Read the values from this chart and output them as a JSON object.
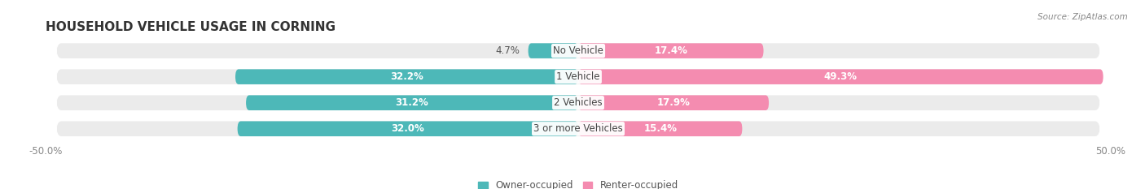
{
  "title": "HOUSEHOLD VEHICLE USAGE IN CORNING",
  "source": "Source: ZipAtlas.com",
  "categories": [
    "No Vehicle",
    "1 Vehicle",
    "2 Vehicles",
    "3 or more Vehicles"
  ],
  "owner_values": [
    4.7,
    32.2,
    31.2,
    32.0
  ],
  "renter_values": [
    17.4,
    49.3,
    17.9,
    15.4
  ],
  "owner_color": "#4db8b8",
  "renter_color": "#f48cb0",
  "bar_bg_color": "#ebebeb",
  "axis_min": -50.0,
  "axis_max": 50.0,
  "legend_labels": [
    "Owner-occupied",
    "Renter-occupied"
  ],
  "title_fontsize": 11,
  "label_fontsize": 8.5,
  "tick_fontsize": 8.5,
  "value_threshold": 10
}
